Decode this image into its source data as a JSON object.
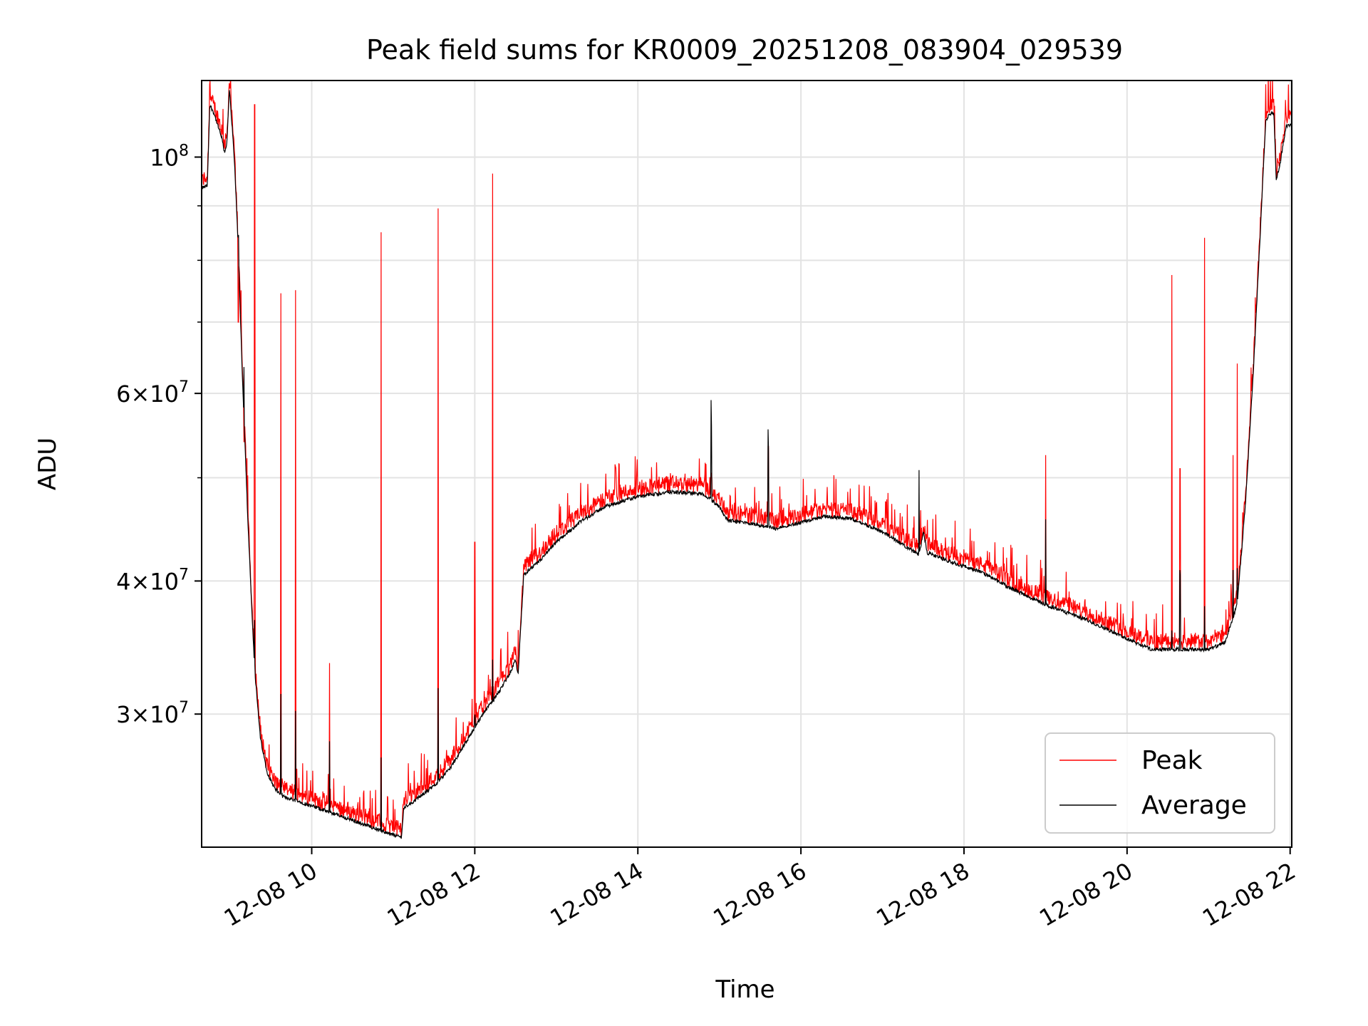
{
  "chart_data": {
    "type": "line",
    "title": "Peak field sums for KR0009_20251208_083904_029539",
    "xlabel": "Time",
    "ylabel": "ADU",
    "yscale": "log",
    "grid": true,
    "legend_position": "lower-right",
    "xlim_hours": [
      8.65,
      22.02
    ],
    "ylim": [
      22500000,
      118000000
    ],
    "x_ticks": [
      {
        "hour": 10,
        "label": "12-08 10"
      },
      {
        "hour": 12,
        "label": "12-08 12"
      },
      {
        "hour": 14,
        "label": "12-08 14"
      },
      {
        "hour": 16,
        "label": "12-08 16"
      },
      {
        "hour": 18,
        "label": "12-08 18"
      },
      {
        "hour": 20,
        "label": "12-08 20"
      },
      {
        "hour": 22,
        "label": "12-08 22"
      }
    ],
    "y_ticks": [
      {
        "value": 30000000,
        "mant": "3",
        "exp": "7"
      },
      {
        "value": 40000000,
        "mant": "4",
        "exp": "7"
      },
      {
        "value": 60000000,
        "mant": "6",
        "exp": "7"
      },
      {
        "value": 100000000,
        "mant": "",
        "exp": "8"
      }
    ],
    "y_minor_ticks": [
      50000000,
      70000000,
      80000000,
      90000000
    ],
    "series": [
      {
        "name": "Peak",
        "color": "#ff0000"
      },
      {
        "name": "Average",
        "color": "#000000"
      }
    ],
    "average_baseline": [
      [
        8.65,
        93500000
      ],
      [
        8.72,
        94000000
      ],
      [
        8.75,
        112000000
      ],
      [
        8.8,
        110000000
      ],
      [
        8.9,
        104000000
      ],
      [
        8.93,
        101000000
      ],
      [
        8.96,
        103000000
      ],
      [
        8.99,
        116000000
      ],
      [
        9.05,
        100000000
      ],
      [
        9.1,
        82000000
      ],
      [
        9.15,
        62000000
      ],
      [
        9.22,
        45000000
      ],
      [
        9.3,
        33000000
      ],
      [
        9.37,
        28500000
      ],
      [
        9.45,
        26500000
      ],
      [
        9.55,
        25500000
      ],
      [
        9.65,
        25100000
      ],
      [
        9.8,
        24900000
      ],
      [
        10.0,
        24600000
      ],
      [
        10.2,
        24300000
      ],
      [
        10.4,
        24000000
      ],
      [
        10.6,
        23700000
      ],
      [
        10.8,
        23400000
      ],
      [
        11.0,
        23100000
      ],
      [
        11.1,
        23000000
      ],
      [
        11.13,
        24500000
      ],
      [
        11.3,
        25000000
      ],
      [
        11.5,
        25700000
      ],
      [
        11.7,
        26700000
      ],
      [
        11.9,
        28300000
      ],
      [
        12.1,
        30000000
      ],
      [
        12.3,
        31500000
      ],
      [
        12.45,
        33000000
      ],
      [
        12.5,
        33800000
      ],
      [
        12.53,
        32600000
      ],
      [
        12.6,
        40500000
      ],
      [
        12.8,
        41800000
      ],
      [
        13.0,
        43500000
      ],
      [
        13.3,
        45500000
      ],
      [
        13.6,
        47000000
      ],
      [
        14.0,
        48000000
      ],
      [
        14.4,
        48500000
      ],
      [
        14.8,
        48300000
      ],
      [
        15.0,
        47000000
      ],
      [
        15.1,
        45600000
      ],
      [
        15.4,
        45300000
      ],
      [
        15.7,
        44800000
      ],
      [
        16.0,
        45400000
      ],
      [
        16.3,
        46000000
      ],
      [
        16.6,
        45800000
      ],
      [
        17.0,
        44500000
      ],
      [
        17.35,
        42800000
      ],
      [
        17.45,
        42300000
      ],
      [
        17.5,
        44500000
      ],
      [
        17.55,
        42500000
      ],
      [
        17.8,
        41800000
      ],
      [
        18.2,
        40800000
      ],
      [
        18.6,
        39300000
      ],
      [
        19.0,
        38000000
      ],
      [
        19.5,
        36800000
      ],
      [
        20.0,
        35300000
      ],
      [
        20.3,
        34500000
      ],
      [
        20.6,
        34500000
      ],
      [
        21.0,
        34500000
      ],
      [
        21.2,
        35000000
      ],
      [
        21.35,
        38000000
      ],
      [
        21.45,
        47000000
      ],
      [
        21.55,
        63000000
      ],
      [
        21.65,
        90000000
      ],
      [
        21.7,
        108000000
      ],
      [
        21.75,
        110000000
      ],
      [
        21.8,
        110000000
      ],
      [
        21.83,
        95000000
      ],
      [
        21.88,
        99000000
      ],
      [
        21.95,
        107000000
      ],
      [
        22.02,
        107000000
      ]
    ],
    "peak_spikes": [
      [
        9.1,
        70000000
      ],
      [
        9.17,
        54000000
      ],
      [
        9.3,
        112000000
      ],
      [
        9.62,
        74500000
      ],
      [
        9.8,
        75000000
      ],
      [
        10.22,
        33500000
      ],
      [
        10.85,
        85000000
      ],
      [
        11.55,
        89500000
      ],
      [
        12.0,
        43500000
      ],
      [
        12.22,
        96500000
      ],
      [
        14.4,
        50500000
      ],
      [
        14.9,
        50500000
      ],
      [
        15.6,
        53500000
      ],
      [
        17.45,
        46500000
      ],
      [
        19.0,
        52500000
      ],
      [
        20.55,
        77500000
      ],
      [
        20.65,
        51000000
      ],
      [
        20.95,
        84000000
      ],
      [
        21.3,
        52500000
      ],
      [
        21.35,
        64000000
      ]
    ]
  },
  "legend": {
    "peak_label": "Peak",
    "average_label": "Average"
  }
}
